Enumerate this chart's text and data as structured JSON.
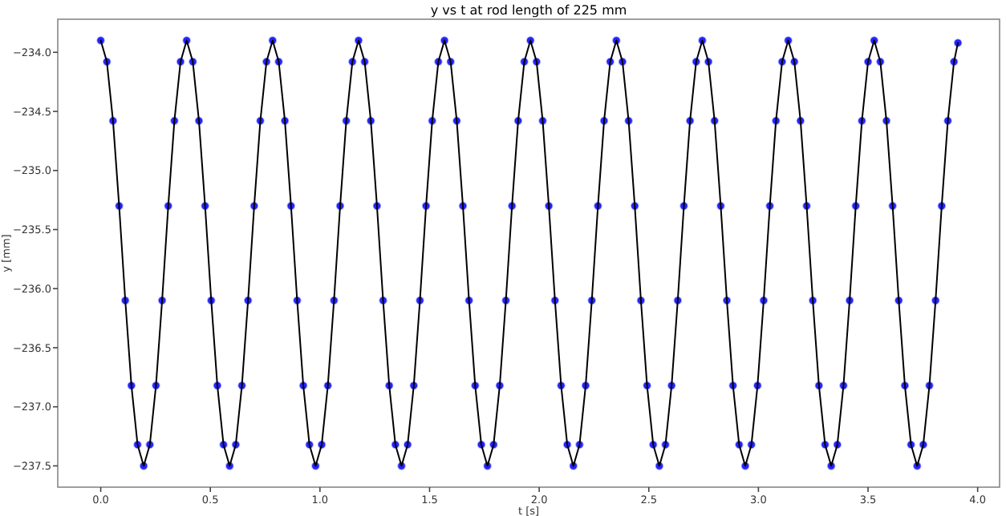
{
  "chart_data": {
    "type": "line",
    "title": "y vs t at rod length of 225 mm",
    "xlabel": "t [s]",
    "ylabel": "y [mm]",
    "x": [
      0,
      0.028,
      0.056,
      0.084,
      0.112,
      0.14,
      0.168,
      0.196,
      0.224,
      0.252,
      0.28,
      0.308,
      0.336,
      0.364,
      0.392,
      0.42,
      0.448,
      0.476,
      0.504,
      0.532,
      0.56,
      0.588,
      0.616,
      0.644,
      0.672,
      0.7,
      0.728,
      0.756,
      0.784,
      0.812,
      0.84,
      0.868,
      0.896,
      0.924,
      0.952,
      0.98,
      1.008,
      1.036,
      1.064,
      1.092,
      1.12,
      1.148,
      1.176,
      1.204,
      1.232,
      1.26,
      1.288,
      1.316,
      1.344,
      1.372,
      1.4,
      1.428,
      1.456,
      1.484,
      1.512,
      1.54,
      1.568,
      1.596,
      1.624,
      1.652,
      1.68,
      1.708,
      1.736,
      1.764,
      1.792,
      1.82,
      1.848,
      1.876,
      1.904,
      1.932,
      1.96,
      1.988,
      2.016,
      2.044,
      2.072,
      2.1,
      2.128,
      2.156,
      2.184,
      2.212,
      2.24,
      2.268,
      2.296,
      2.324,
      2.352,
      2.38,
      2.408,
      2.436,
      2.464,
      2.492,
      2.52,
      2.548,
      2.576,
      2.604,
      2.632,
      2.66,
      2.688,
      2.716,
      2.744,
      2.772,
      2.8,
      2.828,
      2.856,
      2.884,
      2.912,
      2.94,
      2.968,
      2.996,
      3.024,
      3.052,
      3.08,
      3.108,
      3.136,
      3.164,
      3.192,
      3.22,
      3.248,
      3.276,
      3.304,
      3.332,
      3.36,
      3.388,
      3.416,
      3.444,
      3.472,
      3.5,
      3.528,
      3.556,
      3.584,
      3.612,
      3.64,
      3.668,
      3.696,
      3.724,
      3.752,
      3.78,
      3.808,
      3.836,
      3.864,
      3.892,
      3.91
    ],
    "series": [
      {
        "type": "scatter",
        "color": "#0000ff",
        "marker": "circle",
        "values": [
          -233.9,
          -234.08,
          -234.58,
          -235.3,
          -236.1,
          -236.82,
          -237.32,
          -237.5,
          -237.32,
          -236.82,
          -236.1,
          -235.3,
          -234.58,
          -234.08,
          -233.9,
          -234.08,
          -234.58,
          -235.3,
          -236.1,
          -236.82,
          -237.32,
          -237.5,
          -237.32,
          -236.82,
          -236.1,
          -235.3,
          -234.58,
          -234.08,
          -233.9,
          -234.08,
          -234.58,
          -235.3,
          -236.1,
          -236.82,
          -237.32,
          -237.5,
          -237.32,
          -236.82,
          -236.1,
          -235.3,
          -234.58,
          -234.08,
          -233.9,
          -234.08,
          -234.58,
          -235.3,
          -236.1,
          -236.82,
          -237.32,
          -237.5,
          -237.32,
          -236.82,
          -236.1,
          -235.3,
          -234.58,
          -234.08,
          -233.9,
          -234.08,
          -234.58,
          -235.3,
          -236.1,
          -236.82,
          -237.32,
          -237.5,
          -237.32,
          -236.82,
          -236.1,
          -235.3,
          -234.58,
          -234.08,
          -233.9,
          -234.08,
          -234.58,
          -235.3,
          -236.1,
          -236.82,
          -237.32,
          -237.5,
          -237.32,
          -236.82,
          -236.1,
          -235.3,
          -234.58,
          -234.08,
          -233.9,
          -234.08,
          -234.58,
          -235.3,
          -236.1,
          -236.82,
          -237.32,
          -237.5,
          -237.32,
          -236.82,
          -236.1,
          -235.3,
          -234.58,
          -234.08,
          -233.9,
          -234.08,
          -234.58,
          -235.3,
          -236.1,
          -236.82,
          -237.32,
          -237.5,
          -237.32,
          -236.82,
          -236.1,
          -235.3,
          -234.58,
          -234.08,
          -233.9,
          -234.08,
          -234.58,
          -235.3,
          -236.1,
          -236.82,
          -237.32,
          -237.5,
          -237.32,
          -236.82,
          -236.1,
          -235.3,
          -234.58,
          -234.08,
          -233.9,
          -234.08,
          -234.58,
          -235.3,
          -236.1,
          -236.82,
          -237.32,
          -237.5,
          -237.32,
          -236.82,
          -236.1,
          -235.3,
          -234.58,
          -234.08,
          -233.92
        ]
      },
      {
        "color": "#000000",
        "line_style": "solid",
        "values": [
          -233.9,
          -234.08,
          -234.58,
          -235.3,
          -236.1,
          -236.82,
          -237.32,
          -237.5,
          -237.32,
          -236.82,
          -236.1,
          -235.3,
          -234.58,
          -234.08,
          -233.9,
          -234.08,
          -234.58,
          -235.3,
          -236.1,
          -236.82,
          -237.32,
          -237.5,
          -237.32,
          -236.82,
          -236.1,
          -235.3,
          -234.58,
          -234.08,
          -233.9,
          -234.08,
          -234.58,
          -235.3,
          -236.1,
          -236.82,
          -237.32,
          -237.5,
          -237.32,
          -236.82,
          -236.1,
          -235.3,
          -234.58,
          -234.08,
          -233.9,
          -234.08,
          -234.58,
          -235.3,
          -236.1,
          -236.82,
          -237.32,
          -237.5,
          -237.32,
          -236.82,
          -236.1,
          -235.3,
          -234.58,
          -234.08,
          -233.9,
          -234.08,
          -234.58,
          -235.3,
          -236.1,
          -236.82,
          -237.32,
          -237.5,
          -237.32,
          -236.82,
          -236.1,
          -235.3,
          -234.58,
          -234.08,
          -233.9,
          -234.08,
          -234.58,
          -235.3,
          -236.1,
          -236.82,
          -237.32,
          -237.5,
          -237.32,
          -236.82,
          -236.1,
          -235.3,
          -234.58,
          -234.08,
          -233.9,
          -234.08,
          -234.58,
          -235.3,
          -236.1,
          -236.82,
          -237.32,
          -237.5,
          -237.32,
          -236.82,
          -236.1,
          -235.3,
          -234.58,
          -234.08,
          -233.9,
          -234.08,
          -234.58,
          -235.3,
          -236.1,
          -236.82,
          -237.32,
          -237.5,
          -237.32,
          -236.82,
          -236.1,
          -235.3,
          -234.58,
          -234.08,
          -233.9,
          -234.08,
          -234.58,
          -235.3,
          -236.1,
          -236.82,
          -237.32,
          -237.5,
          -237.32,
          -236.82,
          -236.1,
          -235.3,
          -234.58,
          -234.08,
          -233.9,
          -234.08,
          -234.58,
          -235.3,
          -236.1,
          -236.82,
          -237.32,
          -237.5,
          -237.32,
          -236.82,
          -236.1,
          -235.3,
          -234.58,
          -234.08,
          -233.92
        ]
      }
    ],
    "xlim": [
      -0.196,
      4.1
    ],
    "xticks": [
      {
        "value": 0,
        "label": "0.0"
      },
      0.5,
      {
        "value": 1,
        "label": "1.0"
      },
      1.5,
      {
        "value": 2,
        "label": "2.0"
      },
      2.5,
      {
        "value": 3,
        "label": "3.0"
      },
      3.5,
      {
        "value": 4,
        "label": "4.0"
      }
    ],
    "ylim": [
      -237.68,
      -233.72
    ],
    "yticks": [
      {
        "value": -237.5,
        "label": "−237.5"
      },
      {
        "value": -237.0,
        "label": "−237.0"
      },
      {
        "value": -236.5,
        "label": "−236.5"
      },
      {
        "value": -236.0,
        "label": "−236.0"
      },
      {
        "value": -235.5,
        "label": "−235.5"
      },
      {
        "value": -235.0,
        "label": "−235.0"
      },
      {
        "value": -234.5,
        "label": "−234.5"
      },
      {
        "value": -234.0,
        "label": "−234.0"
      }
    ]
  }
}
